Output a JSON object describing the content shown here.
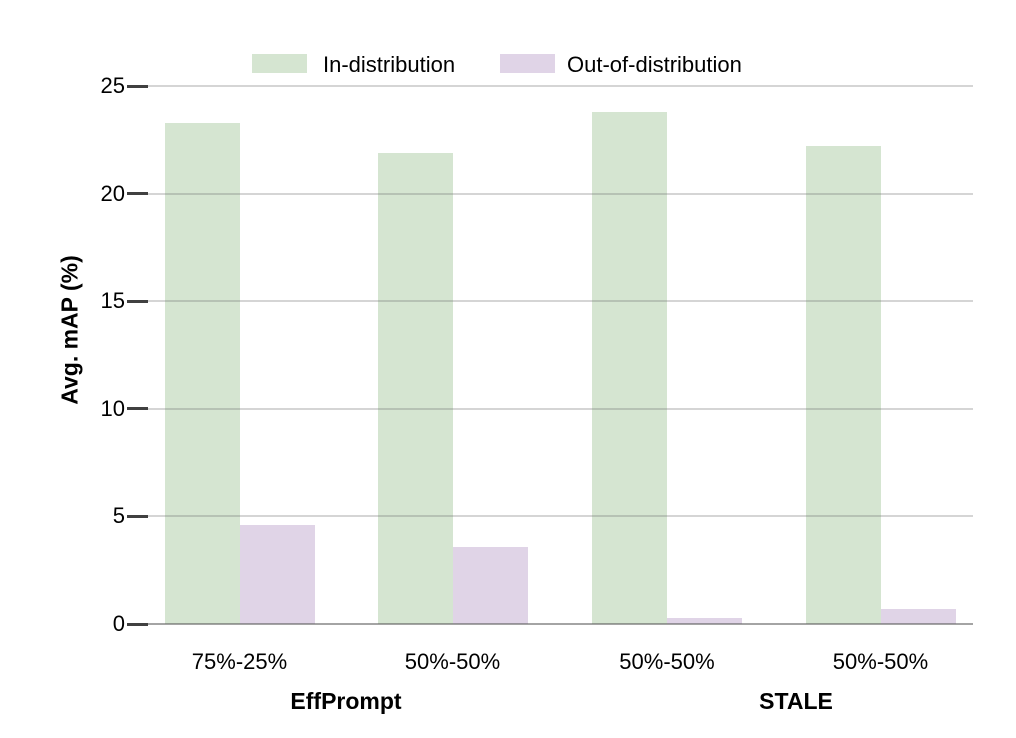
{
  "chart_data": {
    "type": "bar",
    "title": "",
    "xlabel": "",
    "ylabel": "Avg. mAP (%)",
    "ylim": [
      0,
      25
    ],
    "yticks": [
      0,
      5,
      10,
      15,
      20,
      25
    ],
    "grid": "horizontal",
    "legend_position": "top",
    "categories": [
      "75%-25%",
      "50%-50%",
      "50%-50%",
      "50%-50%"
    ],
    "group_labels": [
      "EffPrompt",
      "STALE"
    ],
    "series": [
      {
        "name": "In-distribution",
        "color": "#d5e5d1",
        "values": [
          23.3,
          21.9,
          23.8,
          22.2
        ]
      },
      {
        "name": "Out-of-distribution",
        "color": "#e0d4e7",
        "values": [
          4.6,
          3.6,
          0.3,
          0.7
        ]
      }
    ],
    "colors": {
      "gridline": "#c9c9c9",
      "tick": "#404040",
      "text": "#000000"
    }
  }
}
